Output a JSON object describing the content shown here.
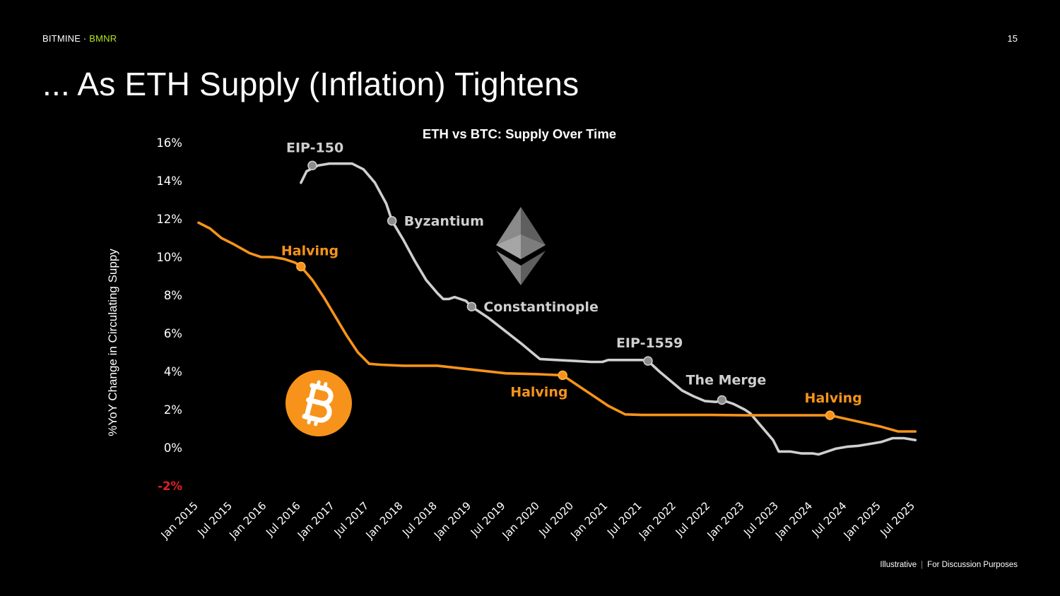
{
  "header": {
    "brand": "BITMINE",
    "separator": " · ",
    "ticker": "BMNR",
    "page_number": "15"
  },
  "slide_title": "... As ETH Supply (Inflation) Tightens",
  "footer": {
    "left": "Illustrative",
    "divider": "|",
    "right": "For Discussion Purposes"
  },
  "colors": {
    "background": "#000000",
    "eth": "#cfcfcf",
    "btc": "#f7931a",
    "accent": "#b5e61d",
    "negative_tick": "#e02020"
  },
  "icons": [
    "ethereum-logo-icon",
    "bitcoin-logo-icon"
  ],
  "chart_data": {
    "type": "line",
    "title": "ETH vs BTC: Supply Over Time",
    "ylabel": "%YoY Change in Circulating Suppy",
    "xlabel": "",
    "ylim": [
      -2,
      16
    ],
    "yticks": [
      "16%",
      "14%",
      "12%",
      "10%",
      "8%",
      "6%",
      "4%",
      "2%",
      "0%",
      "-2%"
    ],
    "x_ticks": [
      "Jan 2015",
      "Jul 2015",
      "Jan 2016",
      "Jul 2016",
      "Jan 2017",
      "Jul 2017",
      "Jan 2018",
      "Jul 2018",
      "Jan 2019",
      "Jul 2019",
      "Jan 2020",
      "Jul 2020",
      "Jan 2021",
      "Jul 2021",
      "Jan 2022",
      "Jul 2022",
      "Jan 2023",
      "Jul 2023",
      "Jan 2024",
      "Jul 2024",
      "Jan 2025",
      "Jul 2025"
    ],
    "grid": false,
    "legend": "none",
    "series": [
      {
        "key": "eth",
        "points": [
          [
            "2016-07",
            13.9
          ],
          [
            "2016-08",
            14.5
          ],
          [
            "2016-10",
            14.8
          ],
          [
            "2016-12",
            14.9
          ],
          [
            "2017-02",
            14.9
          ],
          [
            "2017-04",
            14.9
          ],
          [
            "2017-06",
            14.6
          ],
          [
            "2017-08",
            13.9
          ],
          [
            "2017-10",
            12.8
          ],
          [
            "2017-11",
            11.9
          ],
          [
            "2018-01",
            10.9
          ],
          [
            "2018-03",
            9.8
          ],
          [
            "2018-05",
            8.8
          ],
          [
            "2018-07",
            8.1
          ],
          [
            "2018-08",
            7.8
          ],
          [
            "2018-09",
            7.8
          ],
          [
            "2018-10",
            7.9
          ],
          [
            "2018-12",
            7.7
          ],
          [
            "2019-01",
            7.4
          ],
          [
            "2019-04",
            6.8
          ],
          [
            "2019-07",
            6.1
          ],
          [
            "2019-10",
            5.4
          ],
          [
            "2019-12",
            4.9
          ],
          [
            "2020-01",
            4.65
          ],
          [
            "2020-04",
            4.6
          ],
          [
            "2020-07",
            4.55
          ],
          [
            "2020-10",
            4.5
          ],
          [
            "2020-12",
            4.5
          ],
          [
            "2021-01",
            4.6
          ],
          [
            "2021-04",
            4.6
          ],
          [
            "2021-07",
            4.6
          ],
          [
            "2021-08",
            4.55
          ],
          [
            "2021-10",
            4.0
          ],
          [
            "2021-12",
            3.5
          ],
          [
            "2022-02",
            3.0
          ],
          [
            "2022-04",
            2.7
          ],
          [
            "2022-06",
            2.45
          ],
          [
            "2022-08",
            2.4
          ],
          [
            "2022-09",
            2.5
          ],
          [
            "2022-11",
            2.3
          ],
          [
            "2023-01",
            2.0
          ],
          [
            "2023-02",
            1.8
          ],
          [
            "2023-04",
            1.1
          ],
          [
            "2023-06",
            0.4
          ],
          [
            "2023-07",
            -0.2
          ],
          [
            "2023-09",
            -0.2
          ],
          [
            "2023-11",
            -0.3
          ],
          [
            "2024-01",
            -0.3
          ],
          [
            "2024-02",
            -0.35
          ],
          [
            "2024-03",
            -0.25
          ],
          [
            "2024-05",
            -0.05
          ],
          [
            "2024-07",
            0.05
          ],
          [
            "2024-09",
            0.1
          ],
          [
            "2024-11",
            0.2
          ],
          [
            "2025-01",
            0.3
          ],
          [
            "2025-03",
            0.5
          ],
          [
            "2025-05",
            0.5
          ],
          [
            "2025-07",
            0.4
          ]
        ]
      },
      {
        "key": "btc",
        "points": [
          [
            "2015-01",
            11.8
          ],
          [
            "2015-03",
            11.5
          ],
          [
            "2015-05",
            11.0
          ],
          [
            "2015-07",
            10.7
          ],
          [
            "2015-10",
            10.2
          ],
          [
            "2015-12",
            10.0
          ],
          [
            "2016-02",
            10.0
          ],
          [
            "2016-04",
            9.9
          ],
          [
            "2016-06",
            9.7
          ],
          [
            "2016-07",
            9.5
          ],
          [
            "2016-09",
            8.8
          ],
          [
            "2016-11",
            7.9
          ],
          [
            "2017-01",
            6.9
          ],
          [
            "2017-03",
            5.9
          ],
          [
            "2017-05",
            5.0
          ],
          [
            "2017-07",
            4.4
          ],
          [
            "2017-09",
            4.35
          ],
          [
            "2018-01",
            4.3
          ],
          [
            "2018-07",
            4.3
          ],
          [
            "2019-01",
            4.1
          ],
          [
            "2019-07",
            3.9
          ],
          [
            "2020-01",
            3.85
          ],
          [
            "2020-05",
            3.8
          ],
          [
            "2020-07",
            3.4
          ],
          [
            "2020-10",
            2.8
          ],
          [
            "2021-01",
            2.2
          ],
          [
            "2021-04",
            1.75
          ],
          [
            "2021-07",
            1.72
          ],
          [
            "2022-01",
            1.72
          ],
          [
            "2022-07",
            1.72
          ],
          [
            "2023-01",
            1.7
          ],
          [
            "2023-07",
            1.7
          ],
          [
            "2024-01",
            1.7
          ],
          [
            "2024-04",
            1.7
          ],
          [
            "2024-07",
            1.5
          ],
          [
            "2024-10",
            1.3
          ],
          [
            "2025-01",
            1.1
          ],
          [
            "2025-04",
            0.85
          ],
          [
            "2025-07",
            0.85
          ]
        ]
      }
    ],
    "annotations": [
      {
        "text": "EIP-150",
        "series": "eth",
        "date": "2016-09",
        "value": 14.8
      },
      {
        "text": "Byzantium",
        "series": "eth",
        "date": "2017-11",
        "value": 11.9
      },
      {
        "text": "Constantinople",
        "series": "eth",
        "date": "2019-01",
        "value": 7.4
      },
      {
        "text": "EIP-1559",
        "series": "eth",
        "date": "2021-08",
        "value": 4.55
      },
      {
        "text": "The Merge",
        "series": "eth",
        "date": "2022-09",
        "value": 2.5
      },
      {
        "text": "Halving",
        "series": "btc",
        "date": "2016-07",
        "value": 9.5
      },
      {
        "text": "Halving",
        "series": "btc",
        "date": "2020-05",
        "value": 3.8
      },
      {
        "text": "Halving",
        "series": "btc",
        "date": "2024-04",
        "value": 1.7
      }
    ]
  }
}
